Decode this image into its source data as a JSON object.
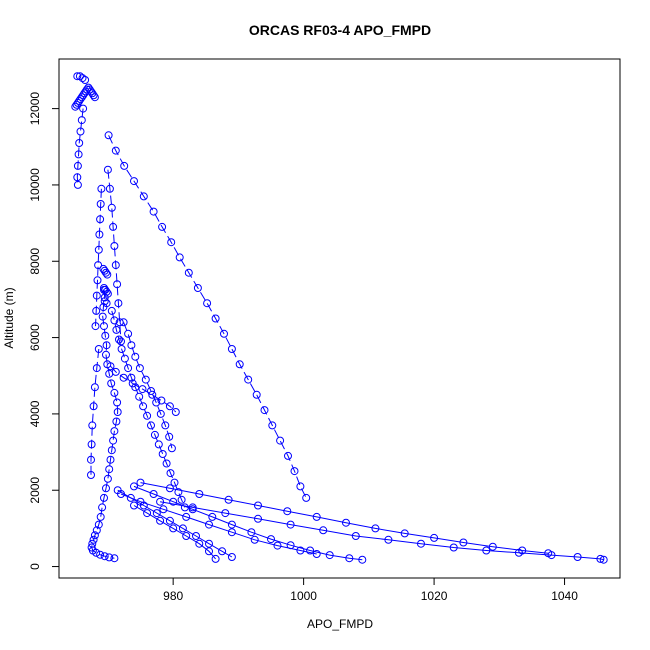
{
  "chart_data": {
    "type": "scatter",
    "title": "ORCAS RF03-4 APO_FMPD",
    "xlabel": "APO_FMPD",
    "ylabel": "Altitude (m)",
    "xlim": [
      962.5,
      1048.5
    ],
    "ylim": [
      -300,
      13300
    ],
    "xticks": [
      980,
      1000,
      1020,
      1040
    ],
    "yticks": [
      0,
      2000,
      4000,
      6000,
      8000,
      10000,
      12000
    ],
    "grid": false,
    "legend": "none",
    "colors": {
      "series": "#0000ff",
      "frame": "#000000"
    },
    "series": [
      {
        "mode": "dashed-line-with-open-circles",
        "x": [
          969.4,
          969.5,
          969.3,
          969.2,
          969.4,
          969.6,
          969.8,
          969.7,
          969.9,
          970.2,
          970.5,
          971.0,
          971.4,
          971.5,
          971.3,
          971.0,
          970.8,
          970.6,
          970.4,
          970.2,
          970.0,
          969.7,
          969.4,
          969.1,
          968.9,
          968.6,
          968.3,
          968.0,
          967.8,
          967.6,
          967.5,
          967.7,
          968.2,
          968.8,
          969.5,
          970.2,
          971.0
        ],
        "y": [
          7250,
          7050,
          6800,
          6550,
          6300,
          6050,
          5800,
          5550,
          5300,
          5050,
          4800,
          4550,
          4300,
          4050,
          3800,
          3550,
          3300,
          3050,
          2800,
          2550,
          2300,
          2050,
          1800,
          1550,
          1300,
          1100,
          950,
          820,
          700,
          600,
          500,
          420,
          360,
          310,
          270,
          240,
          220
        ]
      },
      {
        "mode": "dashed-line-with-open-circles",
        "x": [
          970.6,
          971.0,
          971.3,
          971.7,
          972.1,
          972.6,
          973.1,
          973.6,
          974.2,
          974.8,
          975.4,
          976.0,
          976.6,
          977.2,
          977.8,
          978.4,
          979.0,
          979.6,
          980.2,
          980.8,
          981.3,
          981.8
        ],
        "y": [
          6700,
          6450,
          6200,
          5950,
          5700,
          5450,
          5200,
          4950,
          4700,
          4450,
          4200,
          3950,
          3700,
          3450,
          3200,
          2950,
          2700,
          2450,
          2200,
          1950,
          1750,
          1550
        ]
      },
      {
        "mode": "dashed-line-with-open-circles",
        "x": [
          970.4,
          971.2,
          972.4,
          973.8,
          975.3,
          976.8,
          978.2,
          979.5,
          980.4
        ],
        "y": [
          5250,
          5100,
          4950,
          4800,
          4650,
          4500,
          4350,
          4200,
          4050
        ]
      },
      {
        "mode": "dashed-line-with-open-circles",
        "x": [
          966.2,
          966.0,
          965.8,
          965.6,
          965.5,
          965.4,
          965.3,
          965.4
        ],
        "y": [
          12000,
          11700,
          11400,
          11100,
          10800,
          10500,
          10200,
          10000
        ]
      },
      {
        "mode": "dashed-line-with-open-circles",
        "x": [
          970.1,
          971.2,
          972.5,
          974.0,
          975.5,
          977.0,
          978.3,
          979.7,
          981.0,
          982.4,
          983.8,
          985.2,
          986.5,
          987.8,
          989.0,
          990.2,
          991.5,
          992.8,
          994.0,
          995.2,
          996.4,
          997.6,
          998.6,
          999.5,
          1000.4
        ],
        "y": [
          11300,
          10900,
          10500,
          10100,
          9700,
          9300,
          8900,
          8500,
          8100,
          7700,
          7300,
          6900,
          6500,
          6100,
          5700,
          5300,
          4900,
          4500,
          4100,
          3700,
          3300,
          2900,
          2500,
          2100,
          1800
        ]
      },
      {
        "mode": "solid-line-with-open-circles",
        "x": [
          978.0,
          983.0,
          988.0,
          993.0,
          998.0,
          1003.0,
          1008.0,
          1013.0,
          1018.0,
          1023.0,
          1028.0,
          1033.0,
          1038.0,
          1042.0,
          1045.5,
          1046.0
        ],
        "y": [
          1700,
          1550,
          1400,
          1250,
          1100,
          950,
          800,
          700,
          600,
          500,
          420,
          360,
          300,
          250,
          200,
          180
        ]
      },
      {
        "mode": "solid-line-with-open-circles",
        "x": [
          975.0,
          979.5,
          984.0,
          988.5,
          993.0,
          997.5,
          1002.0,
          1006.5,
          1011.0,
          1015.5,
          1020.0,
          1024.5,
          1029.0,
          1033.5,
          1037.5
        ],
        "y": [
          2200,
          2050,
          1900,
          1750,
          1600,
          1450,
          1300,
          1150,
          1000,
          870,
          750,
          630,
          520,
          420,
          350
        ]
      },
      {
        "mode": "solid-line-with-open-circles",
        "x": [
          974.0,
          977.0,
          980.0,
          983.0,
          986.0,
          989.0,
          992.0,
          995.0,
          998.0,
          1001.0,
          1004.0,
          1007.0,
          1009.0
        ],
        "y": [
          2100,
          1900,
          1700,
          1500,
          1300,
          1100,
          900,
          720,
          560,
          420,
          300,
          220,
          180
        ]
      },
      {
        "mode": "solid-line-with-open-circles",
        "x": [
          972.0,
          975.0,
          978.5,
          982.0,
          985.5,
          989.0,
          992.5,
          996.0,
          999.5,
          1002.0
        ],
        "y": [
          1900,
          1700,
          1500,
          1300,
          1100,
          900,
          700,
          550,
          420,
          330
        ]
      },
      {
        "mode": "solid-line-with-open-circles",
        "x": [
          971.5,
          973.5,
          975.5,
          977.5,
          979.5,
          981.5,
          983.5,
          985.5,
          987.5,
          989.0
        ],
        "y": [
          2000,
          1800,
          1600,
          1400,
          1200,
          1000,
          800,
          600,
          400,
          250
        ]
      },
      {
        "mode": "solid-line-with-open-circles",
        "x": [
          974.0,
          976.0,
          978.0,
          980.0,
          982.0,
          984.0,
          985.5,
          986.5
        ],
        "y": [
          1600,
          1400,
          1200,
          1000,
          800,
          600,
          400,
          200
        ]
      },
      {
        "mode": "dashed-line-with-open-circles",
        "x": [
          969.0,
          968.9,
          968.8,
          968.7,
          968.6,
          968.5,
          968.4,
          968.3,
          968.2,
          968.1
        ],
        "y": [
          9900,
          9500,
          9100,
          8700,
          8300,
          7900,
          7500,
          7100,
          6700,
          6300
        ]
      },
      {
        "mode": "dashed-line-with-open-circles",
        "x": [
          968.6,
          968.3,
          968.0,
          967.8,
          967.6,
          967.5,
          967.4,
          967.4
        ],
        "y": [
          5700,
          5200,
          4700,
          4200,
          3700,
          3200,
          2800,
          2400
        ]
      },
      {
        "mode": "dashed-line-with-open-circles",
        "x": [
          970.0,
          970.3,
          970.6,
          970.8,
          971.0,
          971.2,
          971.4,
          971.6,
          971.8,
          972.0
        ],
        "y": [
          10400,
          9900,
          9400,
          8900,
          8400,
          7900,
          7400,
          6900,
          6400,
          5900
        ]
      },
      {
        "mode": "dashed-line-with-open-circles",
        "x": [
          972.4,
          973.1,
          973.6,
          974.2,
          974.9,
          975.8,
          976.6,
          977.4,
          978.1,
          978.8,
          979.4,
          979.8
        ],
        "y": [
          6400,
          6100,
          5800,
          5500,
          5200,
          4900,
          4600,
          4300,
          4000,
          3700,
          3400,
          3100
        ]
      },
      {
        "mode": "clustered-open-circles",
        "x": [
          965.0,
          965.2,
          965.4,
          965.6,
          965.8,
          966.0,
          966.2,
          966.4,
          966.6,
          966.8,
          967.0,
          967.2,
          967.4,
          967.6,
          967.8,
          968.0,
          965.3,
          965.7,
          966.1,
          966.5
        ],
        "y": [
          12050,
          12100,
          12150,
          12200,
          12250,
          12300,
          12350,
          12400,
          12450,
          12500,
          12550,
          12500,
          12450,
          12400,
          12350,
          12300,
          12850,
          12850,
          12800,
          12750
        ]
      },
      {
        "mode": "clustered-open-circles",
        "x": [
          969.3,
          969.5,
          969.7,
          969.9,
          969.4,
          969.6,
          969.8,
          970.0,
          969.5,
          969.8
        ],
        "y": [
          7800,
          7750,
          7700,
          7650,
          7300,
          7250,
          7200,
          7150,
          6950,
          6900
        ]
      }
    ]
  }
}
